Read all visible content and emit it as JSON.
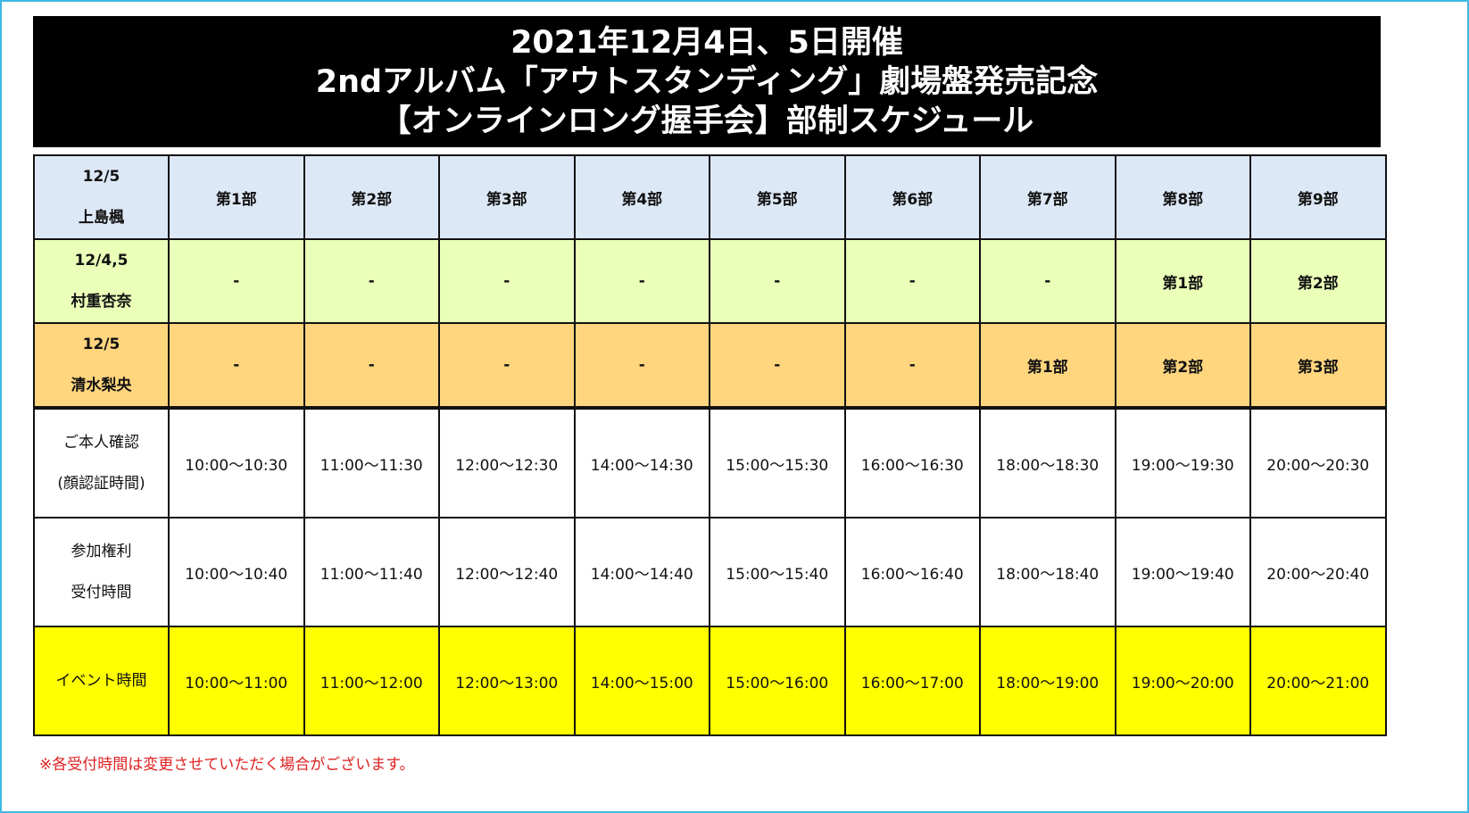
{
  "title": {
    "line1": "2021年12月4日、5日開催",
    "line2": "2ndアルバム「アウトスタンディング」劇場盤発売記念",
    "line3": "【オンラインロング握手会】部制スケジュール"
  },
  "colors": {
    "frame": "#3fb8e6",
    "row_member1": "#dde8f6",
    "row_member2": "#eaffb8",
    "row_member3": "#ffd57e",
    "row_event": "#ffff00",
    "note": "#e02020"
  },
  "rows": [
    {
      "label": [
        "12/5",
        "上島楓"
      ],
      "cells": [
        "第1部",
        "第2部",
        "第3部",
        "第4部",
        "第5部",
        "第6部",
        "第7部",
        "第8部",
        "第9部"
      ]
    },
    {
      "label": [
        "12/4,5",
        "村重杏奈"
      ],
      "cells": [
        "-",
        "-",
        "-",
        "-",
        "-",
        "-",
        "-",
        "第1部",
        "第2部"
      ]
    },
    {
      "label": [
        "12/5",
        "清水梨央"
      ],
      "cells": [
        "-",
        "-",
        "-",
        "-",
        "-",
        "-",
        "第1部",
        "第2部",
        "第3部"
      ]
    },
    {
      "label": [
        "ご本人確認",
        "(顔認証時間)"
      ],
      "cells": [
        "10:00～10:30",
        "11:00～11:30",
        "12:00～12:30",
        "14:00～14:30",
        "15:00～15:30",
        "16:00～16:30",
        "18:00～18:30",
        "19:00～19:30",
        "20:00～20:30"
      ]
    },
    {
      "label": [
        "参加権利",
        "受付時間"
      ],
      "cells": [
        "10:00～10:40",
        "11:00～11:40",
        "12:00～12:40",
        "14:00～14:40",
        "15:00～15:40",
        "16:00～16:40",
        "18:00～18:40",
        "19:00～19:40",
        "20:00～20:40"
      ]
    },
    {
      "label": [
        "イベント時間"
      ],
      "cells": [
        "10:00～11:00",
        "11:00～12:00",
        "12:00～13:00",
        "14:00～15:00",
        "15:00～16:00",
        "16:00～17:00",
        "18:00～19:00",
        "19:00～20:00",
        "20:00～21:00"
      ]
    }
  ],
  "note": "※各受付時間は変更させていただく場合がございます。"
}
